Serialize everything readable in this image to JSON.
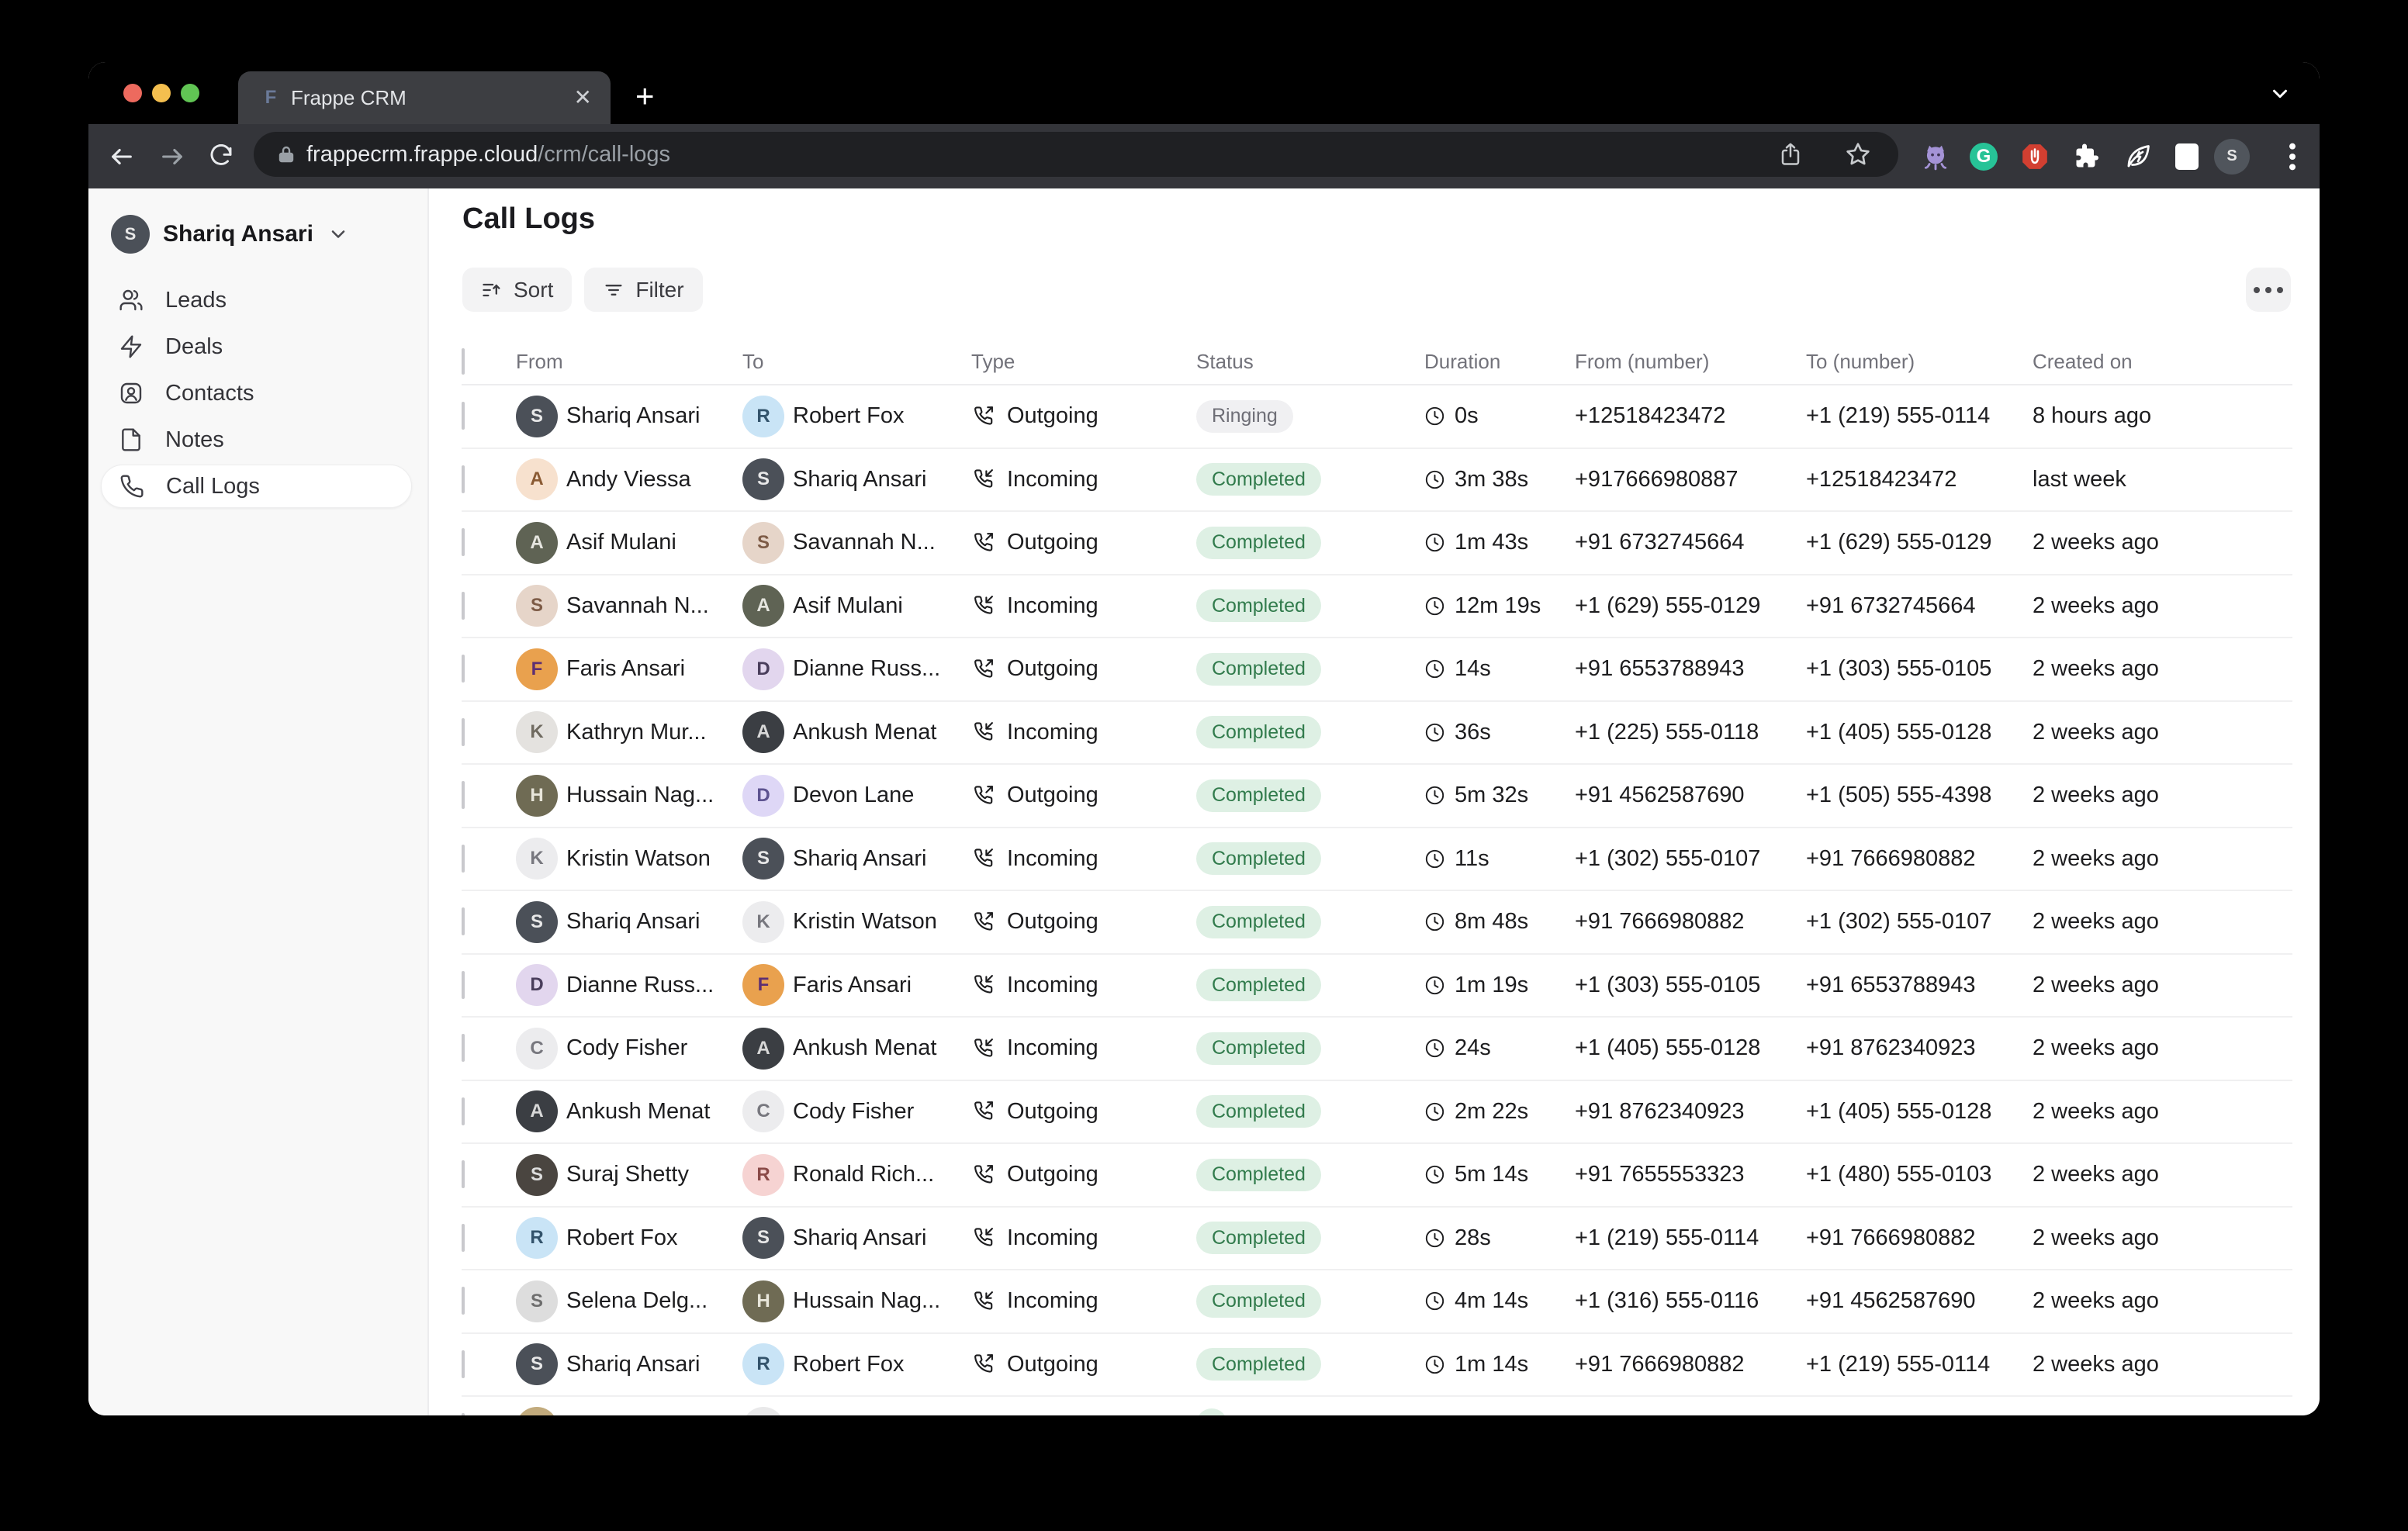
{
  "browser": {
    "tab": {
      "title": "Frappe CRM",
      "favicon": "frappe-f-icon",
      "close": "✕"
    },
    "new_tab_label": "+",
    "url": {
      "domain": "frappecrm.frappe.cloud",
      "path": "/crm/call-logs"
    },
    "extensions": [
      "octopus-extension-icon",
      "grammarly-icon",
      "adblock-icon",
      "puzzle-extension-icon",
      "leaf-energy-icon",
      "sidebar-toggle-icon"
    ],
    "profile_initial": "S",
    "grammarly_letter": "G",
    "colors": {
      "tabstrip": "#000000",
      "tab": "#3d3e42",
      "toolbar": "#34353a",
      "urlfield": "#1f2023",
      "traffic_red": "#ed6a5e",
      "traffic_yellow": "#f4bf4f",
      "traffic_green": "#61c554",
      "grammarly_green": "#27c397",
      "adblock_red": "#d23f31",
      "octopus_purple": "#a493d6"
    }
  },
  "sidebar": {
    "user": {
      "name": "Shariq Ansari",
      "avatar_initial": "S"
    },
    "items": [
      {
        "label": "Leads",
        "icon": "leads",
        "active": false
      },
      {
        "label": "Deals",
        "icon": "deals",
        "active": false
      },
      {
        "label": "Contacts",
        "icon": "contacts",
        "active": false
      },
      {
        "label": "Notes",
        "icon": "notes",
        "active": false
      },
      {
        "label": "Call Logs",
        "icon": "calllogs",
        "active": true
      }
    ]
  },
  "page": {
    "title": "Call Logs",
    "sort_label": "Sort",
    "filter_label": "Filter"
  },
  "table": {
    "columns": [
      "From",
      "To",
      "Type",
      "Status",
      "Duration",
      "From (number)",
      "To (number)",
      "Created on"
    ],
    "status_colors": {
      "Completed": {
        "bg": "#def0e4",
        "text": "#317b4c"
      },
      "Ringing": {
        "bg": "#f0f0f2",
        "text": "#6e6e76"
      }
    },
    "rows": [
      {
        "from": {
          "name": "Shariq Ansari",
          "avatar": {
            "initial": "S",
            "bg": "#4b5058",
            "fg": "#e8e8e8"
          }
        },
        "to": {
          "name": "Robert Fox",
          "avatar": {
            "initial": "R",
            "bg": "#c9e4f6",
            "fg": "#33536b"
          }
        },
        "type": "Outgoing",
        "status": "Ringing",
        "duration": "0s",
        "from_number": "+12518423472",
        "to_number": "+1 (219) 555-0114",
        "created": "8 hours ago"
      },
      {
        "from": {
          "name": "Andy Viessa",
          "avatar": {
            "initial": "A",
            "bg": "#f7e1ce",
            "fg": "#8a5a33"
          }
        },
        "to": {
          "name": "Shariq Ansari",
          "avatar": {
            "initial": "S",
            "bg": "#4b5058",
            "fg": "#e8e8e8"
          }
        },
        "type": "Incoming",
        "status": "Completed",
        "duration": "3m 38s",
        "from_number": "+917666980887",
        "to_number": "+12518423472",
        "created": "last week"
      },
      {
        "from": {
          "name": "Asif Mulani",
          "avatar": {
            "initial": "A",
            "bg": "#5f6354",
            "fg": "#e6e6e0"
          }
        },
        "to": {
          "name": "Savannah N...",
          "avatar": {
            "initial": "S",
            "bg": "#e6d5c9",
            "fg": "#7d5b46"
          }
        },
        "type": "Outgoing",
        "status": "Completed",
        "duration": "1m 43s",
        "from_number": "+91 6732745664",
        "to_number": "+1 (629) 555-0129",
        "created": "2 weeks ago"
      },
      {
        "from": {
          "name": "Savannah N...",
          "avatar": {
            "initial": "S",
            "bg": "#e6d5c9",
            "fg": "#7d5b46"
          }
        },
        "to": {
          "name": "Asif Mulani",
          "avatar": {
            "initial": "A",
            "bg": "#5f6354",
            "fg": "#e6e6e0"
          }
        },
        "type": "Incoming",
        "status": "Completed",
        "duration": "12m 19s",
        "from_number": "+1 (629) 555-0129",
        "to_number": "+91 6732745664",
        "created": "2 weeks ago"
      },
      {
        "from": {
          "name": "Faris Ansari",
          "avatar": {
            "initial": "F",
            "bg": "#e9a14e",
            "fg": "#5d2f73"
          }
        },
        "to": {
          "name": "Dianne Russ...",
          "avatar": {
            "initial": "D",
            "bg": "#e2d6ee",
            "fg": "#4a3e5c"
          }
        },
        "type": "Outgoing",
        "status": "Completed",
        "duration": "14s",
        "from_number": "+91 6553788943",
        "to_number": "+1 (303) 555-0105",
        "created": "2 weeks ago"
      },
      {
        "from": {
          "name": "Kathryn Mur...",
          "avatar": {
            "initial": "K",
            "bg": "#e4e2df",
            "fg": "#6f6a60"
          }
        },
        "to": {
          "name": "Ankush Menat",
          "avatar": {
            "initial": "A",
            "bg": "#3b3e43",
            "fg": "#d8d8d8"
          }
        },
        "type": "Incoming",
        "status": "Completed",
        "duration": "36s",
        "from_number": "+1 (225) 555-0118",
        "to_number": "+1 (405) 555-0128",
        "created": "2 weeks ago"
      },
      {
        "from": {
          "name": "Hussain Nag...",
          "avatar": {
            "initial": "H",
            "bg": "#6f6b54",
            "fg": "#e8e6da"
          }
        },
        "to": {
          "name": "Devon Lane",
          "avatar": {
            "initial": "D",
            "bg": "#ded7f6",
            "fg": "#5d5390"
          }
        },
        "type": "Outgoing",
        "status": "Completed",
        "duration": "5m 32s",
        "from_number": "+91 4562587690",
        "to_number": "+1 (505) 555-4398",
        "created": "2 weeks ago"
      },
      {
        "from": {
          "name": "Kristin Watson",
          "avatar": {
            "initial": "K",
            "bg": "#ececee",
            "fg": "#77777e"
          }
        },
        "to": {
          "name": "Shariq Ansari",
          "avatar": {
            "initial": "S",
            "bg": "#4b5058",
            "fg": "#e8e8e8"
          }
        },
        "type": "Incoming",
        "status": "Completed",
        "duration": "11s",
        "from_number": "+1 (302) 555-0107",
        "to_number": "+91 7666980882",
        "created": "2 weeks ago"
      },
      {
        "from": {
          "name": "Shariq Ansari",
          "avatar": {
            "initial": "S",
            "bg": "#4b5058",
            "fg": "#e8e8e8"
          }
        },
        "to": {
          "name": "Kristin Watson",
          "avatar": {
            "initial": "K",
            "bg": "#ececee",
            "fg": "#77777e"
          }
        },
        "type": "Outgoing",
        "status": "Completed",
        "duration": "8m 48s",
        "from_number": "+91 7666980882",
        "to_number": "+1 (302) 555-0107",
        "created": "2 weeks ago"
      },
      {
        "from": {
          "name": "Dianne Russ...",
          "avatar": {
            "initial": "D",
            "bg": "#e2d6ee",
            "fg": "#4a3e5c"
          }
        },
        "to": {
          "name": "Faris Ansari",
          "avatar": {
            "initial": "F",
            "bg": "#e9a14e",
            "fg": "#5d2f73"
          }
        },
        "type": "Incoming",
        "status": "Completed",
        "duration": "1m 19s",
        "from_number": "+1 (303) 555-0105",
        "to_number": "+91 6553788943",
        "created": "2 weeks ago"
      },
      {
        "from": {
          "name": "Cody Fisher",
          "avatar": {
            "initial": "C",
            "bg": "#ececee",
            "fg": "#77777e"
          }
        },
        "to": {
          "name": "Ankush Menat",
          "avatar": {
            "initial": "A",
            "bg": "#3b3e43",
            "fg": "#d8d8d8"
          }
        },
        "type": "Incoming",
        "status": "Completed",
        "duration": "24s",
        "from_number": "+1 (405) 555-0128",
        "to_number": "+91 8762340923",
        "created": "2 weeks ago"
      },
      {
        "from": {
          "name": "Ankush Menat",
          "avatar": {
            "initial": "A",
            "bg": "#3b3e43",
            "fg": "#d8d8d8"
          }
        },
        "to": {
          "name": "Cody Fisher",
          "avatar": {
            "initial": "C",
            "bg": "#ececee",
            "fg": "#77777e"
          }
        },
        "type": "Outgoing",
        "status": "Completed",
        "duration": "2m 22s",
        "from_number": "+91 8762340923",
        "to_number": "+1 (405) 555-0128",
        "created": "2 weeks ago"
      },
      {
        "from": {
          "name": "Suraj Shetty",
          "avatar": {
            "initial": "S",
            "bg": "#4a4540",
            "fg": "#dddddd"
          }
        },
        "to": {
          "name": "Ronald Rich...",
          "avatar": {
            "initial": "R",
            "bg": "#f6d3d2",
            "fg": "#8a4a48"
          }
        },
        "type": "Outgoing",
        "status": "Completed",
        "duration": "5m 14s",
        "from_number": "+91 7655553323",
        "to_number": "+1 (480) 555-0103",
        "created": "2 weeks ago"
      },
      {
        "from": {
          "name": "Robert Fox",
          "avatar": {
            "initial": "R",
            "bg": "#c9e4f6",
            "fg": "#33536b"
          }
        },
        "to": {
          "name": "Shariq Ansari",
          "avatar": {
            "initial": "S",
            "bg": "#4b5058",
            "fg": "#e8e8e8"
          }
        },
        "type": "Incoming",
        "status": "Completed",
        "duration": "28s",
        "from_number": "+1 (219) 555-0114",
        "to_number": "+91 7666980882",
        "created": "2 weeks ago"
      },
      {
        "from": {
          "name": "Selena Delg...",
          "avatar": {
            "initial": "S",
            "bg": "#dddddd",
            "fg": "#6e6e6e"
          }
        },
        "to": {
          "name": "Hussain Nag...",
          "avatar": {
            "initial": "H",
            "bg": "#6f6b54",
            "fg": "#e8e6da"
          }
        },
        "type": "Incoming",
        "status": "Completed",
        "duration": "4m 14s",
        "from_number": "+1 (316) 555-0116",
        "to_number": "+91 4562587690",
        "created": "2 weeks ago"
      },
      {
        "from": {
          "name": "Shariq Ansari",
          "avatar": {
            "initial": "S",
            "bg": "#4b5058",
            "fg": "#e8e8e8"
          }
        },
        "to": {
          "name": "Robert Fox",
          "avatar": {
            "initial": "R",
            "bg": "#c9e4f6",
            "fg": "#33536b"
          }
        },
        "type": "Outgoing",
        "status": "Completed",
        "duration": "1m 14s",
        "from_number": "+91 7666980882",
        "to_number": "+1 (219) 555-0114",
        "created": "2 weeks ago"
      },
      {
        "partial": true,
        "from": {
          "name": "",
          "avatar": {
            "initial": "",
            "bg": "#c2ab7d",
            "fg": "#c2ab7d"
          }
        },
        "to": {
          "name": "",
          "avatar": {
            "initial": "",
            "bg": "#e9e9ea",
            "fg": "#e9e9ea"
          }
        },
        "type": "",
        "status": "Completed",
        "duration": "",
        "from_number": "",
        "to_number": "",
        "created": ""
      }
    ]
  }
}
